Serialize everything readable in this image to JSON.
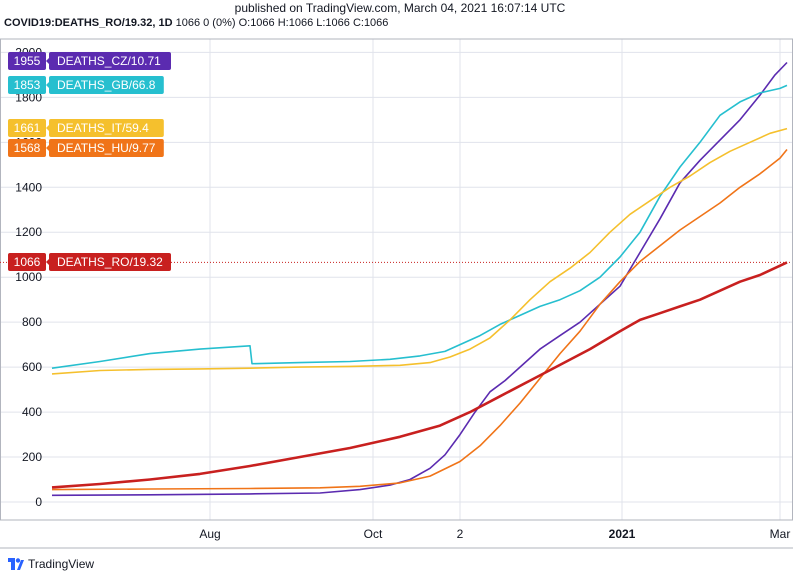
{
  "header": {
    "published": "published on TradingView.com, March 04, 2021 16:07:14 UTC",
    "ticker": "COVID19:DEATHS_RO/19.32, 1D",
    "ticker_rest": "1066 0 (0%) O:1066 H:1066 L:1066 C:1066"
  },
  "footer": {
    "brand": "TradingView"
  },
  "colors": {
    "cz": "#5b2bb0",
    "gb": "#26bfcf",
    "it": "#f5c02d",
    "hu": "#f07418",
    "ro": "#c8201f",
    "grid": "#e0e3eb",
    "axis": "#131722"
  },
  "chart_data": {
    "type": "line",
    "ylim": [
      -80,
      2050
    ],
    "y_ticks": [
      0,
      200,
      400,
      600,
      800,
      1000,
      1200,
      1400,
      1600,
      1800,
      2000
    ],
    "x_ticks": [
      {
        "label": "Aug",
        "x": 210
      },
      {
        "label": "Oct",
        "x": 373
      },
      {
        "label": "2",
        "x": 460
      },
      {
        "label": "2021",
        "x": 622,
        "bold": true
      },
      {
        "label": "Mar",
        "x": 780
      }
    ],
    "price_line": 1066,
    "series": [
      {
        "name": "DEATHS_CZ/10.71",
        "value_label": "1955",
        "color_key": "cz",
        "points": [
          [
            52,
            30
          ],
          [
            150,
            32
          ],
          [
            250,
            36
          ],
          [
            320,
            40
          ],
          [
            360,
            55
          ],
          [
            390,
            75
          ],
          [
            410,
            100
          ],
          [
            430,
            150
          ],
          [
            445,
            210
          ],
          [
            460,
            300
          ],
          [
            475,
            400
          ],
          [
            490,
            490
          ],
          [
            505,
            540
          ],
          [
            520,
            600
          ],
          [
            540,
            680
          ],
          [
            560,
            740
          ],
          [
            580,
            800
          ],
          [
            600,
            880
          ],
          [
            620,
            960
          ],
          [
            640,
            1110
          ],
          [
            660,
            1260
          ],
          [
            680,
            1420
          ],
          [
            700,
            1520
          ],
          [
            720,
            1610
          ],
          [
            740,
            1700
          ],
          [
            760,
            1810
          ],
          [
            775,
            1900
          ],
          [
            787,
            1955
          ]
        ]
      },
      {
        "name": "DEATHS_GB/66.8",
        "value_label": "1853",
        "color_key": "gb",
        "points": [
          [
            52,
            595
          ],
          [
            100,
            625
          ],
          [
            150,
            660
          ],
          [
            200,
            680
          ],
          [
            250,
            695
          ],
          [
            252,
            615
          ],
          [
            300,
            620
          ],
          [
            350,
            625
          ],
          [
            390,
            635
          ],
          [
            420,
            650
          ],
          [
            445,
            670
          ],
          [
            460,
            700
          ],
          [
            480,
            740
          ],
          [
            500,
            790
          ],
          [
            520,
            830
          ],
          [
            540,
            870
          ],
          [
            560,
            900
          ],
          [
            580,
            940
          ],
          [
            600,
            1000
          ],
          [
            620,
            1090
          ],
          [
            640,
            1200
          ],
          [
            660,
            1360
          ],
          [
            680,
            1490
          ],
          [
            700,
            1600
          ],
          [
            720,
            1720
          ],
          [
            740,
            1780
          ],
          [
            760,
            1820
          ],
          [
            780,
            1840
          ],
          [
            787,
            1853
          ]
        ]
      },
      {
        "name": "DEATHS_IT/59.4",
        "value_label": "1661",
        "color_key": "it",
        "points": [
          [
            52,
            570
          ],
          [
            100,
            585
          ],
          [
            150,
            590
          ],
          [
            200,
            592
          ],
          [
            250,
            595
          ],
          [
            300,
            600
          ],
          [
            350,
            603
          ],
          [
            400,
            608
          ],
          [
            430,
            620
          ],
          [
            450,
            645
          ],
          [
            470,
            680
          ],
          [
            490,
            730
          ],
          [
            510,
            810
          ],
          [
            530,
            900
          ],
          [
            550,
            980
          ],
          [
            570,
            1040
          ],
          [
            590,
            1110
          ],
          [
            610,
            1200
          ],
          [
            630,
            1280
          ],
          [
            650,
            1340
          ],
          [
            670,
            1400
          ],
          [
            690,
            1450
          ],
          [
            710,
            1510
          ],
          [
            730,
            1560
          ],
          [
            750,
            1600
          ],
          [
            770,
            1640
          ],
          [
            787,
            1661
          ]
        ]
      },
      {
        "name": "DEATHS_HU/9.77",
        "value_label": "1568",
        "color_key": "hu",
        "points": [
          [
            52,
            55
          ],
          [
            150,
            58
          ],
          [
            250,
            60
          ],
          [
            320,
            63
          ],
          [
            360,
            70
          ],
          [
            400,
            85
          ],
          [
            430,
            115
          ],
          [
            460,
            180
          ],
          [
            480,
            250
          ],
          [
            500,
            340
          ],
          [
            520,
            440
          ],
          [
            540,
            550
          ],
          [
            560,
            660
          ],
          [
            580,
            760
          ],
          [
            600,
            880
          ],
          [
            620,
            980
          ],
          [
            640,
            1070
          ],
          [
            660,
            1140
          ],
          [
            680,
            1210
          ],
          [
            700,
            1270
          ],
          [
            720,
            1330
          ],
          [
            740,
            1400
          ],
          [
            760,
            1460
          ],
          [
            780,
            1530
          ],
          [
            787,
            1568
          ]
        ]
      },
      {
        "name": "DEATHS_RO/19.32",
        "value_label": "1066",
        "color_key": "ro",
        "points": [
          [
            52,
            65
          ],
          [
            100,
            80
          ],
          [
            150,
            100
          ],
          [
            200,
            125
          ],
          [
            250,
            160
          ],
          [
            300,
            200
          ],
          [
            350,
            240
          ],
          [
            400,
            290
          ],
          [
            440,
            340
          ],
          [
            470,
            400
          ],
          [
            500,
            470
          ],
          [
            530,
            540
          ],
          [
            560,
            610
          ],
          [
            590,
            680
          ],
          [
            620,
            760
          ],
          [
            640,
            810
          ],
          [
            660,
            840
          ],
          [
            680,
            870
          ],
          [
            700,
            900
          ],
          [
            720,
            940
          ],
          [
            740,
            980
          ],
          [
            760,
            1010
          ],
          [
            787,
            1066
          ]
        ]
      }
    ]
  }
}
